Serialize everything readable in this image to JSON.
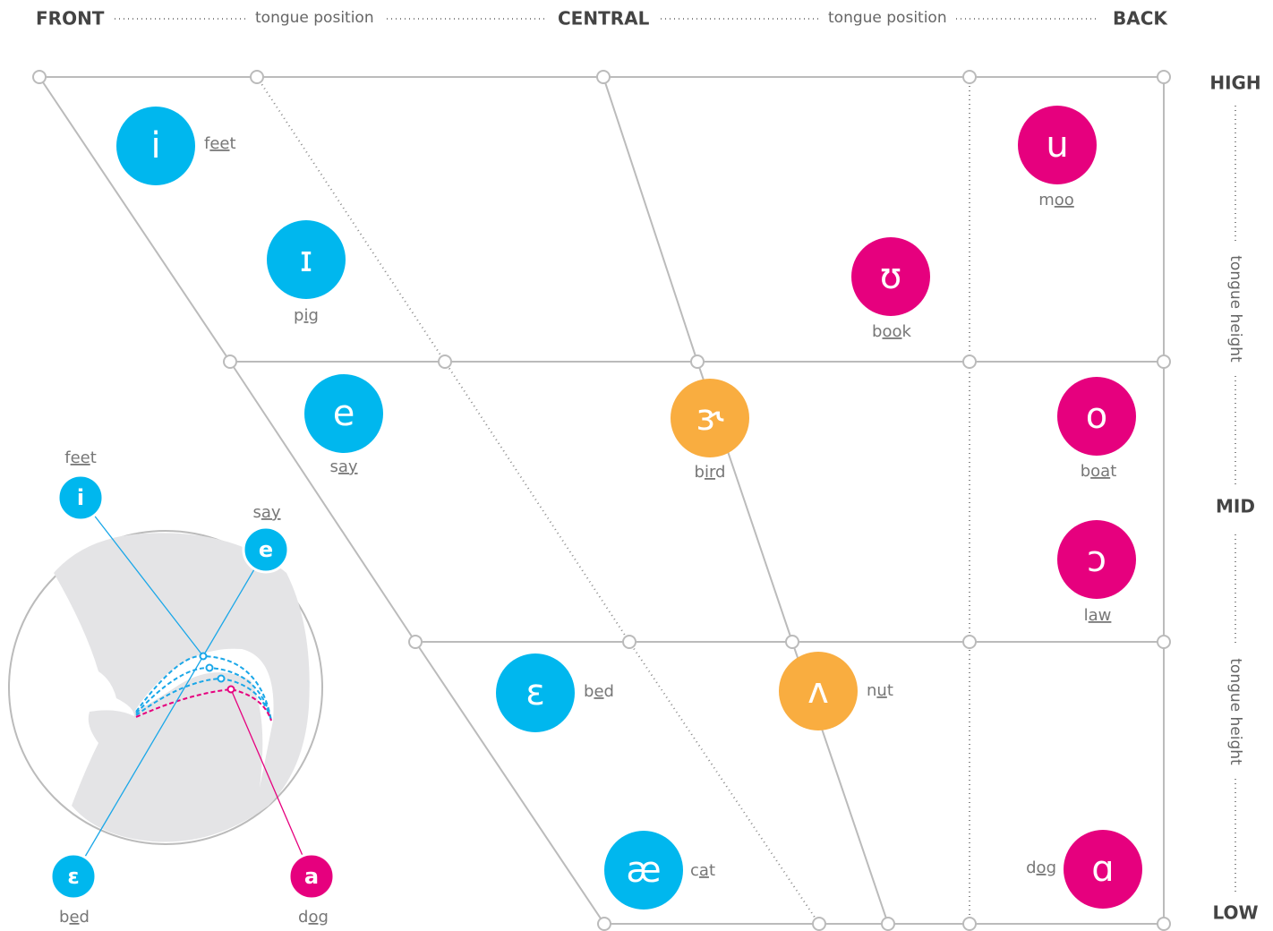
{
  "header": {
    "front": "FRONT",
    "tongue_position_left": "tongue position",
    "central": "CENTRAL",
    "tongue_position_right": "tongue position",
    "back": "BACK"
  },
  "side": {
    "high": "HIGH",
    "tongue_height_upper": "tongue height",
    "mid": "MID",
    "tongue_height_lower": "tongue height",
    "low": "LOW"
  },
  "vowels": [
    {
      "symbol": "i",
      "word": {
        "before": "f",
        "sound": "ee",
        "after": "t"
      }
    },
    {
      "symbol": "ɪ",
      "word": {
        "before": "p",
        "sound": "i",
        "after": "g"
      }
    },
    {
      "symbol": "e",
      "word": {
        "before": "s",
        "sound": "ay"
      }
    },
    {
      "symbol": "ɛ",
      "word": {
        "before": "b",
        "sound": "e",
        "after": "d"
      }
    },
    {
      "symbol": "æ",
      "word": {
        "before": "c",
        "sound": "a",
        "after": "t"
      }
    },
    {
      "symbol": "ɝ",
      "word": {
        "before": "b",
        "sound": "ir",
        "after": "d"
      }
    },
    {
      "symbol": "ʌ",
      "word": {
        "before": "n",
        "sound": "u",
        "after": "t"
      }
    },
    {
      "symbol": "u",
      "word": {
        "before": "m",
        "sound": "oo"
      }
    },
    {
      "symbol": "ʊ",
      "word": {
        "before": "b",
        "sound": "oo",
        "after": "k"
      }
    },
    {
      "symbol": "o",
      "word": {
        "before": "b",
        "sound": "oa",
        "after": "t"
      }
    },
    {
      "symbol": "ɔ",
      "word": {
        "before": "l",
        "sound": "aw"
      }
    },
    {
      "symbol": "ɑ",
      "word": {
        "before": "d",
        "sound": "o",
        "after": "g"
      }
    }
  ],
  "inset": {
    "vowels": [
      {
        "symbol": "i",
        "word": {
          "before": "f",
          "sound": "ee",
          "after": "t"
        }
      },
      {
        "symbol": "e",
        "word": {
          "before": "s",
          "sound": "ay"
        }
      },
      {
        "symbol": "ɛ",
        "word": {
          "before": "b",
          "sound": "e",
          "after": "d"
        }
      },
      {
        "symbol": "a",
        "word": {
          "before": "d",
          "sound": "o",
          "after": "g"
        }
      }
    ]
  }
}
